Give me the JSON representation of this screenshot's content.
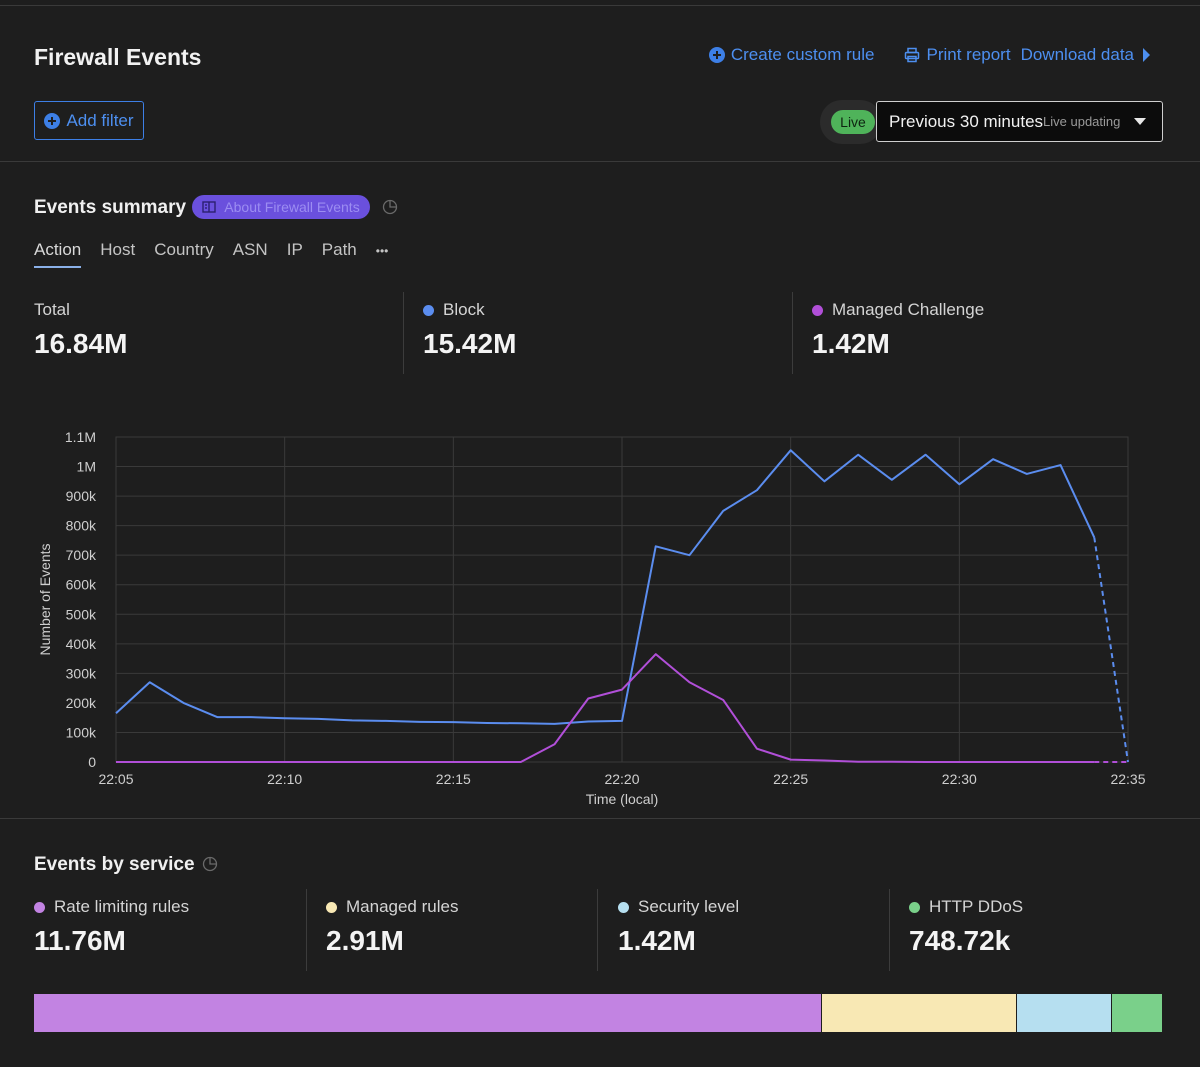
{
  "header": {
    "title": "Firewall Events",
    "create_rule": "Create custom rule",
    "print_report": "Print report",
    "download_data": "Download data"
  },
  "filters": {
    "add_filter": "Add filter",
    "live_badge": "Live",
    "time_range": "Previous 30 minutes",
    "live_updating": "Live updating"
  },
  "summary": {
    "title": "Events summary",
    "about_link": "About Firewall Events",
    "tabs": [
      "Action",
      "Host",
      "Country",
      "ASN",
      "IP",
      "Path",
      "•••"
    ],
    "active_tab": "Action",
    "stats": [
      {
        "label": "Total",
        "value": "16.84M"
      },
      {
        "label": "Block",
        "value": "15.42M",
        "color": "#5b8def"
      },
      {
        "label": "Managed Challenge",
        "value": "1.42M",
        "color": "#b14fd8"
      }
    ]
  },
  "chart_data": {
    "type": "line",
    "xlabel": "Time (local)",
    "ylabel": "Number of Events",
    "ylim": [
      0,
      1100000
    ],
    "yticks": [
      "0",
      "100k",
      "200k",
      "300k",
      "400k",
      "500k",
      "600k",
      "700k",
      "800k",
      "900k",
      "1M",
      "1.1M"
    ],
    "xticks": [
      "22:05",
      "22:10",
      "22:15",
      "22:20",
      "22:25",
      "22:30",
      "22:35"
    ],
    "x": [
      "22:05",
      "22:06",
      "22:07",
      "22:08",
      "22:09",
      "22:10",
      "22:11",
      "22:12",
      "22:13",
      "22:14",
      "22:15",
      "22:16",
      "22:17",
      "22:18",
      "22:19",
      "22:20",
      "22:21",
      "22:22",
      "22:23",
      "22:24",
      "22:25",
      "22:26",
      "22:27",
      "22:28",
      "22:29",
      "22:30",
      "22:31",
      "22:32",
      "22:33",
      "22:34",
      "22:35"
    ],
    "grid": true,
    "series": [
      {
        "name": "Block",
        "color": "#5b8def",
        "values": [
          165000,
          270000,
          200000,
          152000,
          152000,
          148000,
          146000,
          141000,
          139000,
          136000,
          135000,
          132000,
          131000,
          129000,
          137000,
          139000,
          730000,
          700000,
          850000,
          920000,
          1055000,
          950000,
          1040000,
          955000,
          1040000,
          940000,
          1025000,
          975000,
          1005000,
          760000,
          0
        ],
        "dashed_last_segment": true
      },
      {
        "name": "Managed Challenge",
        "color": "#b14fd8",
        "values": [
          0,
          0,
          0,
          0,
          0,
          0,
          0,
          0,
          0,
          0,
          0,
          0,
          0,
          60000,
          215000,
          245000,
          365000,
          270000,
          210000,
          45000,
          8000,
          5000,
          1000,
          1000,
          0,
          0,
          0,
          0,
          0,
          0,
          0
        ],
        "dashed_last_segment": true
      }
    ]
  },
  "services": {
    "title": "Events by service",
    "items": [
      {
        "label": "Rate limiting rules",
        "value": "11.76M",
        "color": "#c283e2",
        "share": 0.698
      },
      {
        "label": "Managed rules",
        "value": "2.91M",
        "color": "#f8e8b4",
        "share": 0.173
      },
      {
        "label": "Security level",
        "value": "1.42M",
        "color": "#b6dff0",
        "share": 0.084
      },
      {
        "label": "HTTP DDoS",
        "value": "748.72k",
        "color": "#7ad08a",
        "share": 0.045
      }
    ]
  }
}
